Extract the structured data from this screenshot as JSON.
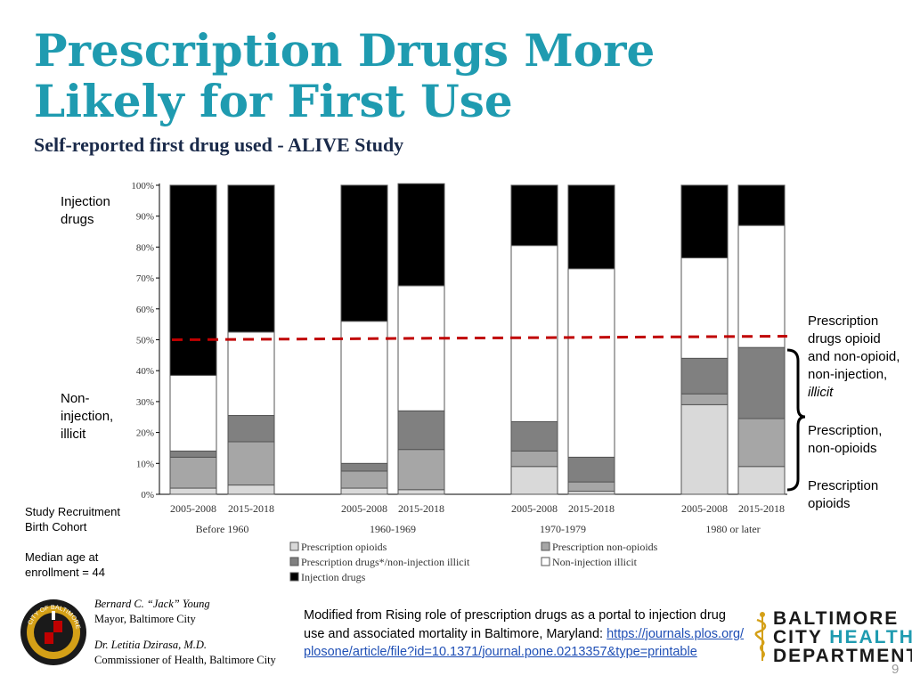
{
  "slide": {
    "title_line1": "Prescription Drugs More",
    "title_line2": "Likely for First Use",
    "subtitle": "Self-reported first drug used - ALIVE Study",
    "label_injection": [
      "Injection",
      "drugs"
    ],
    "label_noninjection": [
      "Non-",
      "injection,",
      "illicit"
    ],
    "label_rx_group": [
      "Prescription",
      "drugs opioid",
      "and non-opioid,",
      "non-injection,",
      "illicit"
    ],
    "label_rx_nonopioids": [
      "Prescription,",
      "non-opioids"
    ],
    "label_rx_opioids": [
      "Prescription",
      "opioids"
    ],
    "cohort_note": [
      "Study Recruitment",
      "Birth Cohort"
    ],
    "median_note": [
      "Median age at",
      "enrollment = 44"
    ],
    "official1_name": "Bernard C. “Jack” Young",
    "official1_title": "Mayor, Baltimore City",
    "official2_name": "Dr. Letitia Dzirasa, M.D.",
    "official2_title": "Commissioner of Health, Baltimore City",
    "citation_text": "Modified from Rising role of prescription drugs as a portal to injection drug use and associated mortality in Baltimore, Maryland:",
    "citation_link": "https://journals.plos.org/plosone/article/file?id=10.1371/journal.pone.0213357&type=printable",
    "logo_line1": "BALTIMORE",
    "logo_line2a": "CITY ",
    "logo_line2b": "HEALTH",
    "logo_line3": "DEPARTMENT",
    "seal_text": "CITY OF BALTIMORE",
    "page_number": "9"
  },
  "colors": {
    "title": "#1f9bb0",
    "subtitle": "#1a2a4a",
    "injection": "#000000",
    "noninjection_illicit": "#ffffff",
    "rx_drugs_noninjection": "#808080",
    "rx_nonopioids": "#a6a6a6",
    "rx_opioids": "#d9d9d9",
    "reference_line": "#c00000",
    "link": "#1f4fb5"
  },
  "chart_data": {
    "type": "bar",
    "stacked": true,
    "ylim": [
      0,
      100
    ],
    "yticks": [
      "0%",
      "10%",
      "20%",
      "30%",
      "40%",
      "50%",
      "60%",
      "70%",
      "80%",
      "90%",
      "100%"
    ],
    "reference_line": 50,
    "categories": [
      "2005-2008",
      "2015-2018",
      "2005-2008",
      "2015-2018",
      "2005-2008",
      "2015-2018",
      "2005-2008",
      "2015-2018"
    ],
    "groups": [
      "Before 1960",
      "1960-1969",
      "1970-1979",
      "1980  or later"
    ],
    "series": [
      {
        "name": "Prescription opioids",
        "color_key": "rx_opioids",
        "values": [
          2,
          3,
          2,
          1.5,
          9,
          1,
          29,
          9
        ]
      },
      {
        "name": "Prescription non-opioids",
        "color_key": "rx_nonopioids",
        "values": [
          10,
          14,
          5.5,
          13,
          5,
          3,
          3.5,
          15.5
        ]
      },
      {
        "name": "Prescription drugs*/non-injection illicit",
        "color_key": "rx_drugs_noninjection",
        "values": [
          2,
          8.5,
          2.5,
          12.5,
          9.5,
          8,
          11.5,
          23
        ]
      },
      {
        "name": "Non-injection illicit",
        "color_key": "noninjection_illicit",
        "values": [
          24.5,
          27,
          46,
          40.5,
          57,
          61,
          32.5,
          39.5
        ]
      },
      {
        "name": "Injection drugs",
        "color_key": "injection",
        "values": [
          61.5,
          47.5,
          44,
          33,
          19.5,
          27,
          23.5,
          13
        ]
      }
    ],
    "legend": [
      "Prescription opioids",
      "Prescription non-opioids",
      "Prescription drugs*/non-injection illicit",
      "Non-injection illicit",
      "Injection drugs"
    ]
  }
}
